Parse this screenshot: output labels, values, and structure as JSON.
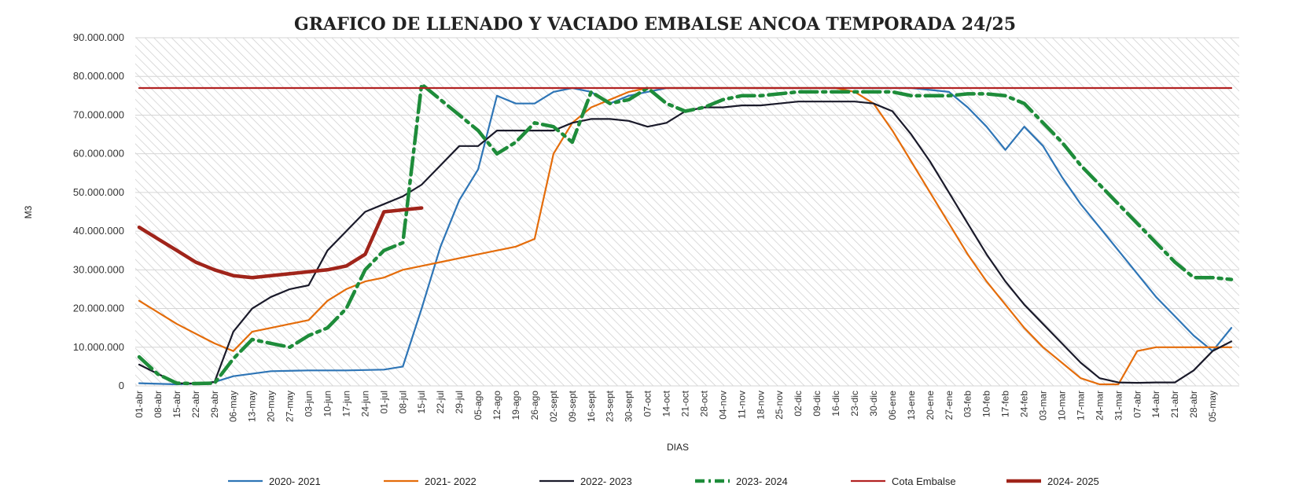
{
  "chart_data": {
    "type": "line",
    "title": "GRAFICO DE LLENADO Y VACIADO EMBALSE ANCOA TEMPORADA 24/25",
    "xlabel": "DIAS",
    "ylabel": "M3",
    "ylim": [
      0,
      90000000
    ],
    "yticks": [
      0,
      10000000,
      20000000,
      30000000,
      40000000,
      50000000,
      60000000,
      70000000,
      80000000,
      90000000
    ],
    "ytick_labels": [
      "0",
      "10.000.000",
      "20.000.000",
      "30.000.000",
      "40.000.000",
      "50.000.000",
      "60.000.000",
      "70.000.000",
      "80.000.000",
      "90.000.000"
    ],
    "x_range_days": [
      0,
      406
    ],
    "x_tick_step_days": 7,
    "categories": [
      "01-abr",
      "08-abr",
      "15-abr",
      "22-abr",
      "29-abr",
      "06-may",
      "13-may",
      "20-may",
      "27-may",
      "03-jun",
      "10-jun",
      "17-jun",
      "24-jun",
      "01-jul",
      "08-jul",
      "15-jul",
      "22-jul",
      "29-jul",
      "05-ago",
      "12-ago",
      "19-ago",
      "26-ago",
      "02-sept",
      "09-sept",
      "16-sept",
      "23-sept",
      "30-sept",
      "07-oct",
      "14-oct",
      "21-oct",
      "28-oct",
      "04-nov",
      "11-nov",
      "18-nov",
      "25-nov",
      "02-dic",
      "09-dic",
      "16-dic",
      "23-dic",
      "30-dic",
      "06-ene",
      "13-ene",
      "20-ene",
      "27-ene",
      "03-feb",
      "10-feb",
      "17-feb",
      "24-feb",
      "03-mar",
      "10-mar",
      "17-mar",
      "24-mar",
      "31-mar",
      "07-abr",
      "14-abr",
      "21-abr",
      "28-abr",
      "05-may"
    ],
    "legend_position": "bottom",
    "series": [
      {
        "name": "2020- 2021",
        "color": "#2e75b6",
        "style": "solid",
        "x": [
          0,
          14,
          21,
          28,
          35,
          49,
          63,
          77,
          84,
          91,
          98,
          105,
          112,
          119,
          126,
          133,
          140,
          147,
          154,
          161,
          168,
          175,
          182,
          189,
          196,
          203,
          210,
          217,
          224,
          231,
          238,
          245,
          252,
          259,
          266,
          273,
          280,
          287,
          294,
          301,
          308,
          315,
          322,
          329,
          336,
          343,
          350,
          357,
          364,
          371,
          378,
          385,
          392,
          399,
          406
        ],
        "y": [
          700000,
          400000,
          600000,
          1000000,
          2500000,
          3800000,
          4000000,
          4000000,
          4100000,
          4200000,
          5000000,
          20000000,
          36000000,
          48000000,
          56000000,
          75000000,
          73000000,
          73000000,
          76000000,
          77000000,
          76000000,
          73000000,
          75000000,
          76000000,
          77000000,
          77000000,
          77000000,
          77000000,
          77000000,
          77000000,
          77000000,
          77000000,
          77000000,
          77000000,
          77000000,
          77000000,
          77000000,
          77000000,
          76500000,
          76000000,
          72000000,
          67000000,
          61000000,
          67000000,
          62000000,
          54000000,
          47000000,
          41000000,
          35000000,
          29000000,
          23000000,
          18000000,
          13000000,
          9000000,
          15000000
        ]
      },
      {
        "name": "2021- 2022",
        "color": "#e46c0a",
        "style": "solid",
        "x": [
          0,
          14,
          28,
          35,
          42,
          49,
          56,
          63,
          70,
          77,
          84,
          91,
          98,
          105,
          112,
          119,
          126,
          133,
          140,
          147,
          154,
          161,
          168,
          175,
          182,
          189,
          196,
          203,
          210,
          217,
          224,
          231,
          238,
          245,
          252,
          259,
          266,
          273,
          280,
          287,
          294,
          301,
          308,
          315,
          322,
          329,
          336,
          343,
          350,
          357,
          364,
          371,
          378,
          385,
          392,
          399,
          406
        ],
        "y": [
          22000000,
          16000000,
          11000000,
          9000000,
          14000000,
          15000000,
          16000000,
          17000000,
          22000000,
          25000000,
          27000000,
          28000000,
          30000000,
          31000000,
          32000000,
          33000000,
          34000000,
          35000000,
          36000000,
          38000000,
          60000000,
          68000000,
          72000000,
          74000000,
          76000000,
          77000000,
          77000000,
          77000000,
          77000000,
          77000000,
          77000000,
          77000000,
          77000000,
          77000000,
          77000000,
          77000000,
          76000000,
          73000000,
          66000000,
          58000000,
          50000000,
          42000000,
          34000000,
          27000000,
          21000000,
          15000000,
          10000000,
          6000000,
          2000000,
          400000,
          400000,
          9000000,
          10000000,
          10000000,
          10000000,
          10000000,
          10000000
        ]
      },
      {
        "name": "2022- 2023",
        "color": "#1a1a2a",
        "style": "solid",
        "x": [
          0,
          14,
          21,
          28,
          35,
          42,
          49,
          56,
          63,
          70,
          77,
          84,
          91,
          98,
          105,
          112,
          119,
          126,
          133,
          140,
          147,
          154,
          161,
          168,
          175,
          182,
          189,
          196,
          203,
          210,
          217,
          224,
          231,
          238,
          245,
          252,
          259,
          266,
          273,
          280,
          287,
          294,
          301,
          308,
          315,
          322,
          329,
          336,
          343,
          350,
          357,
          364,
          371,
          378,
          385,
          392,
          399,
          406
        ],
        "y": [
          5500000,
          700000,
          600000,
          1000000,
          14000000,
          20000000,
          23000000,
          25000000,
          26000000,
          35000000,
          40000000,
          45000000,
          47000000,
          49000000,
          52000000,
          57000000,
          62000000,
          62000000,
          66000000,
          66000000,
          66000000,
          66000000,
          68000000,
          69000000,
          69000000,
          68500000,
          67000000,
          68000000,
          71000000,
          72000000,
          72000000,
          72500000,
          72500000,
          73000000,
          73500000,
          73500000,
          73500000,
          73500000,
          73000000,
          71000000,
          65000000,
          58000000,
          50000000,
          42000000,
          34000000,
          27000000,
          21000000,
          16000000,
          11000000,
          6000000,
          2000000,
          900000,
          800000,
          900000,
          900000,
          4000000,
          9000000,
          11500000
        ]
      },
      {
        "name": "2023- 2024",
        "color": "#1e8c3a",
        "style": "dashdot",
        "x": [
          0,
          7,
          14,
          21,
          28,
          35,
          42,
          49,
          56,
          63,
          70,
          77,
          84,
          91,
          98,
          105,
          112,
          119,
          126,
          133,
          140,
          147,
          154,
          161,
          168,
          175,
          182,
          189,
          196,
          203,
          210,
          217,
          224,
          231,
          238,
          245,
          252,
          259,
          266,
          273,
          280,
          287,
          294,
          301,
          308,
          315,
          322,
          329,
          336,
          343,
          350,
          357,
          364,
          371,
          378,
          385,
          392,
          399,
          406
        ],
        "y": [
          7500000,
          3000000,
          700000,
          600000,
          700000,
          7000000,
          12000000,
          11000000,
          10000000,
          13000000,
          15000000,
          20000000,
          30000000,
          35000000,
          37000000,
          78000000,
          74000000,
          70000000,
          66000000,
          60000000,
          63000000,
          68000000,
          67000000,
          63000000,
          76000000,
          73000000,
          74000000,
          77000000,
          73000000,
          71000000,
          72000000,
          74000000,
          75000000,
          75000000,
          75500000,
          76000000,
          76000000,
          76000000,
          76000000,
          76000000,
          76000000,
          75000000,
          75000000,
          75000000,
          75500000,
          75500000,
          75000000,
          73000000,
          68000000,
          63000000,
          57000000,
          52000000,
          47000000,
          42000000,
          37000000,
          32000000,
          28000000,
          28000000,
          27500000
        ]
      },
      {
        "name": "Cota Embalse",
        "color": "#b22222",
        "style": "solid",
        "x": [
          0,
          406
        ],
        "y": [
          77000000,
          77000000
        ]
      },
      {
        "name": "2024- 2025",
        "color": "#a0241a",
        "style": "thick",
        "x": [
          0,
          7,
          14,
          21,
          28,
          35,
          42,
          49,
          56,
          63,
          70,
          77,
          84,
          91,
          98,
          105
        ],
        "y": [
          41000000,
          38000000,
          35000000,
          32000000,
          30000000,
          28500000,
          28000000,
          28500000,
          29000000,
          29500000,
          30000000,
          31000000,
          34000000,
          45000000,
          45500000,
          46000000
        ]
      }
    ]
  }
}
